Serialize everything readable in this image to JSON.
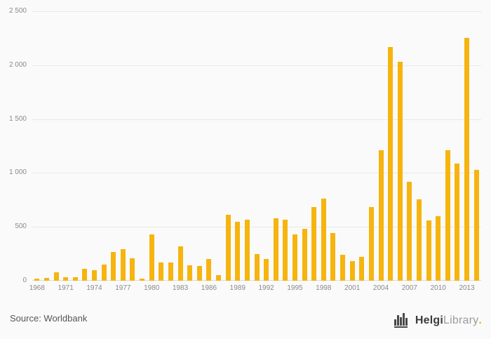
{
  "chart_data": {
    "type": "bar",
    "title": "",
    "xlabel": "",
    "ylabel": "",
    "x": [
      1968,
      1969,
      1970,
      1971,
      1972,
      1973,
      1974,
      1975,
      1976,
      1977,
      1978,
      1979,
      1980,
      1981,
      1982,
      1983,
      1984,
      1985,
      1986,
      1987,
      1988,
      1989,
      1990,
      1991,
      1992,
      1993,
      1994,
      1995,
      1996,
      1997,
      1998,
      1999,
      2000,
      2001,
      2002,
      2003,
      2004,
      2005,
      2006,
      2007,
      2008,
      2009,
      2010,
      2011,
      2012,
      2013,
      2014
    ],
    "values": [
      18,
      25,
      80,
      30,
      35,
      110,
      95,
      150,
      265,
      290,
      210,
      20,
      430,
      170,
      170,
      320,
      145,
      140,
      200,
      50,
      610,
      545,
      565,
      250,
      200,
      580,
      565,
      430,
      480,
      685,
      760,
      440,
      240,
      185,
      220,
      685,
      1210,
      2170,
      2030,
      920,
      755,
      560,
      600,
      1210,
      1090,
      2255,
      1030
    ],
    "ylim": [
      0,
      2500
    ],
    "y_tick_values": [
      0,
      500,
      1000,
      1500,
      2000,
      2500
    ],
    "y_tick_labels": [
      "0",
      "500",
      "1 000",
      "1 500",
      "2 000",
      "2 500"
    ],
    "x_tick_years": [
      1968,
      1971,
      1974,
      1977,
      1980,
      1983,
      1986,
      1989,
      1992,
      1995,
      1998,
      2001,
      2004,
      2007,
      2010,
      2013
    ],
    "grid": true,
    "legend": "none",
    "bar_color": "#f6b40e"
  },
  "footer": {
    "source": "Source: Worldbank",
    "logo": {
      "bold": "Helgi",
      "light": "Library",
      "dot": "."
    }
  },
  "colors": {
    "background": "#fafafa",
    "gridline": "#e9e9e9",
    "axis_text": "#8a8a8a",
    "bar": "#f6b40e",
    "source_text": "#565656",
    "logo_dark": "#3c3c3c",
    "logo_light": "#9b9b9b",
    "logo_dot": "#f6b40e",
    "logo_icon": "#4a4a4a"
  }
}
